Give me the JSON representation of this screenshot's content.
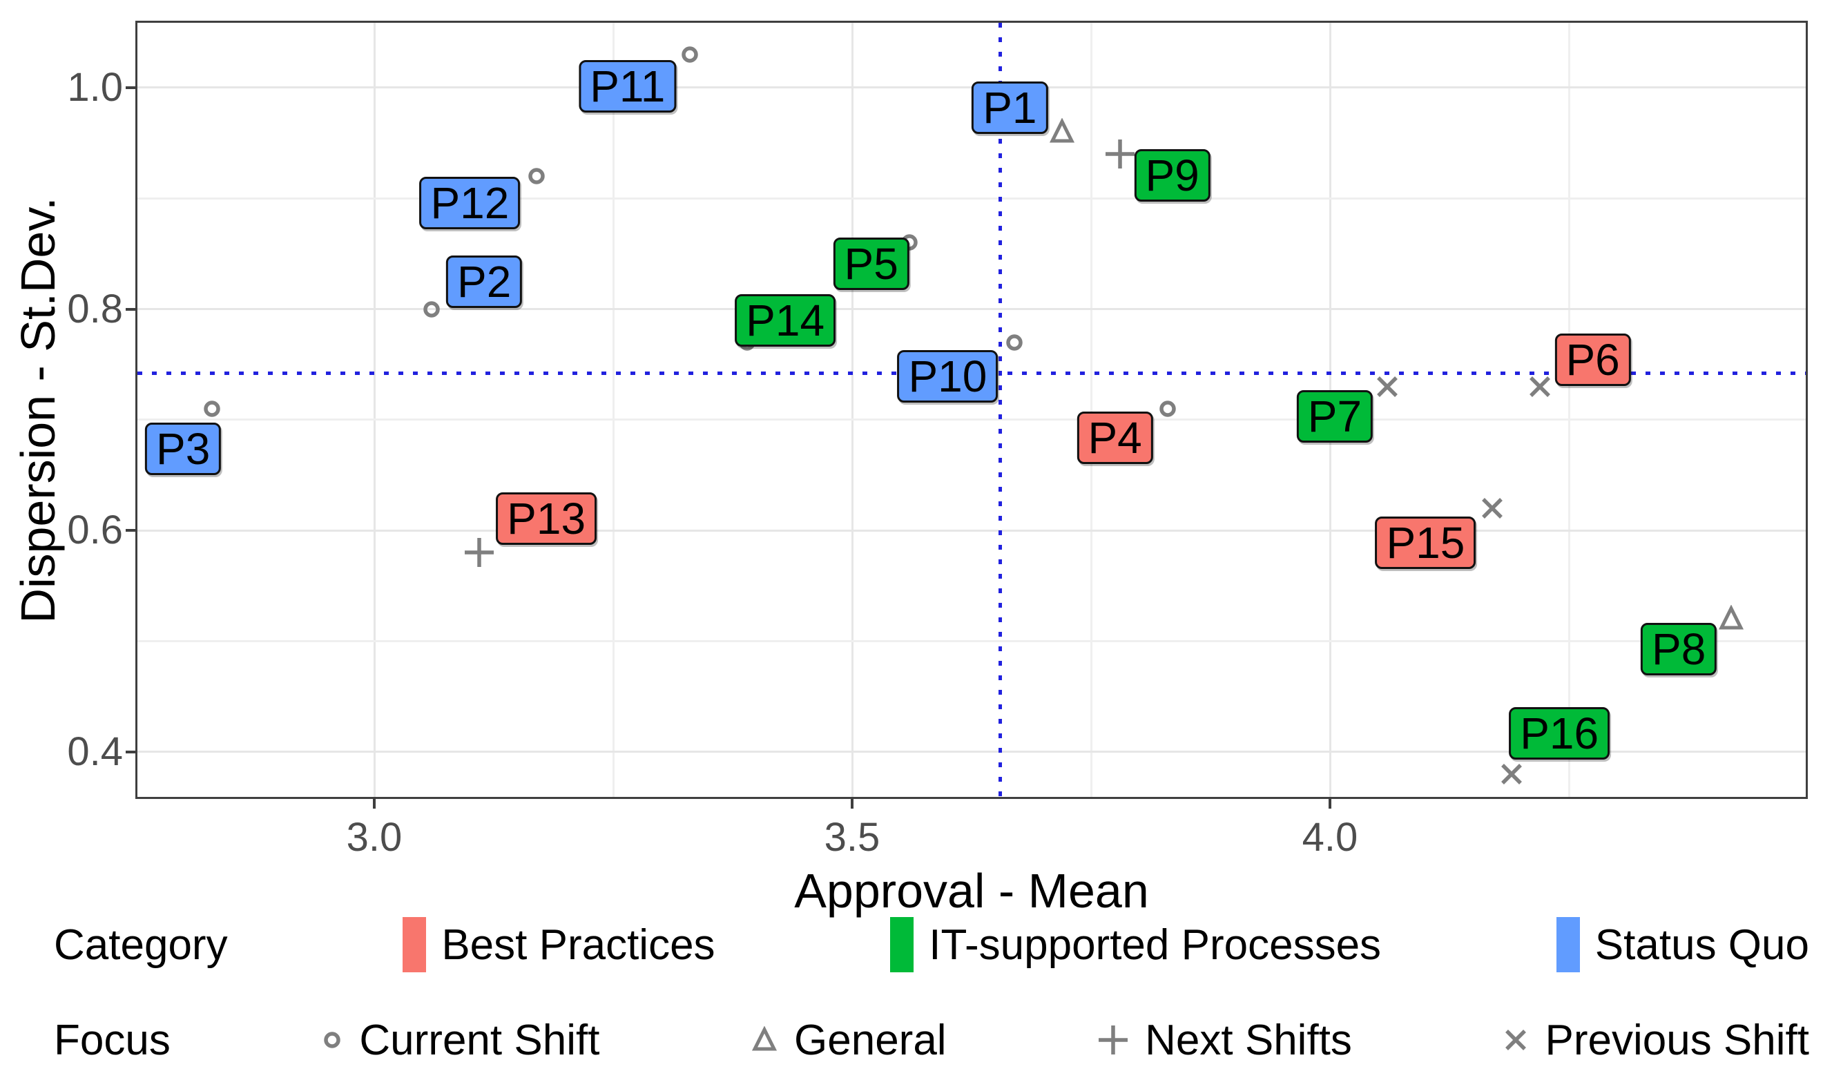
{
  "chart_data": {
    "type": "scatter",
    "title": "",
    "xlabel": "Approval - Mean",
    "ylabel": "Dispersion - St.Dev.",
    "axes": {
      "x": {
        "min": 2.75,
        "max": 4.5,
        "ticks": [
          {
            "v": 3.0,
            "label": "3.0"
          },
          {
            "v": 3.5,
            "label": "3.5"
          },
          {
            "v": 4.0,
            "label": "4.0"
          }
        ],
        "grid_major": [
          3.0,
          3.5,
          4.0
        ],
        "grid_minor": [
          3.25,
          3.75,
          4.25
        ]
      },
      "y": {
        "min": 0.3575,
        "max": 1.0605,
        "ticks": [
          {
            "v": 1.0,
            "label": "1.0"
          },
          {
            "v": 0.8,
            "label": "0.8"
          },
          {
            "v": 0.6,
            "label": "0.6"
          },
          {
            "v": 0.4,
            "label": "0.4"
          }
        ],
        "grid_major": [
          0.4,
          0.6,
          0.8,
          1.0
        ],
        "grid_minor": [
          0.5,
          0.7,
          0.9
        ]
      }
    },
    "grid_on": true,
    "reference_lines": {
      "vertical_x": 3.655,
      "horizontal_y": 0.742,
      "color": "#2121de",
      "style": "dotted"
    },
    "marker_color": "#7f7f7f",
    "category_colors": {
      "Best Practices": "#F8766D",
      "IT-supported Processes": "#00BA38",
      "Status Quo": "#619CFF"
    },
    "focus_shapes": {
      "Current Shift": "circle",
      "General": "triangle",
      "Next Shifts": "plus",
      "Previous Shift": "x"
    },
    "points": [
      {
        "id": "P1",
        "category": "Status Quo",
        "focus": "General",
        "x": 3.72,
        "y": 0.96,
        "label_x": 3.665,
        "label_y": 0.982
      },
      {
        "id": "P2",
        "category": "Status Quo",
        "focus": "Current Shift",
        "x": 3.06,
        "y": 0.8,
        "label_x": 3.115,
        "label_y": 0.825
      },
      {
        "id": "P3",
        "category": "Status Quo",
        "focus": "Current Shift",
        "x": 2.83,
        "y": 0.71,
        "label_x": 2.8,
        "label_y": 0.674
      },
      {
        "id": "P4",
        "category": "Best Practices",
        "focus": "Current Shift",
        "x": 3.83,
        "y": 0.71,
        "label_x": 3.775,
        "label_y": 0.684
      },
      {
        "id": "P5",
        "category": "IT-supported Processes",
        "focus": "Current Shift",
        "x": 3.56,
        "y": 0.86,
        "label_x": 3.52,
        "label_y": 0.841
      },
      {
        "id": "P6",
        "category": "Best Practices",
        "focus": "Previous Shift",
        "x": 4.22,
        "y": 0.73,
        "label_x": 4.275,
        "label_y": 0.754
      },
      {
        "id": "P7",
        "category": "IT-supported Processes",
        "focus": "Previous Shift",
        "x": 4.06,
        "y": 0.73,
        "label_x": 4.005,
        "label_y": 0.703
      },
      {
        "id": "P8",
        "category": "IT-supported Processes",
        "focus": "General",
        "x": 4.42,
        "y": 0.52,
        "label_x": 4.365,
        "label_y": 0.493
      },
      {
        "id": "P9",
        "category": "IT-supported Processes",
        "focus": "Next Shifts",
        "x": 3.78,
        "y": 0.94,
        "label_x": 3.835,
        "label_y": 0.921
      },
      {
        "id": "P10",
        "category": "Status Quo",
        "focus": "Current Shift",
        "x": 3.67,
        "y": 0.77,
        "label_x": 3.6,
        "label_y": 0.739
      },
      {
        "id": "P11",
        "category": "Status Quo",
        "focus": "Current Shift",
        "x": 3.33,
        "y": 1.03,
        "label_x": 3.265,
        "label_y": 1.001
      },
      {
        "id": "P12",
        "category": "Status Quo",
        "focus": "Current Shift",
        "x": 3.17,
        "y": 0.92,
        "label_x": 3.1,
        "label_y": 0.896
      },
      {
        "id": "P13",
        "category": "Best Practices",
        "focus": "Next Shifts",
        "x": 3.11,
        "y": 0.58,
        "label_x": 3.18,
        "label_y": 0.611
      },
      {
        "id": "P14",
        "category": "IT-supported Processes",
        "focus": "Current Shift",
        "x": 3.39,
        "y": 0.77,
        "label_x": 3.43,
        "label_y": 0.79
      },
      {
        "id": "P15",
        "category": "Best Practices",
        "focus": "Previous Shift",
        "x": 4.17,
        "y": 0.62,
        "label_x": 4.1,
        "label_y": 0.589
      },
      {
        "id": "P16",
        "category": "IT-supported Processes",
        "focus": "Previous Shift",
        "x": 4.19,
        "y": 0.38,
        "label_x": 4.24,
        "label_y": 0.417
      }
    ]
  },
  "legend": {
    "category": {
      "title": "Category",
      "items": [
        {
          "label": "Best Practices",
          "color": "#F8766D"
        },
        {
          "label": "IT-supported Processes",
          "color": "#00BA38"
        },
        {
          "label": "Status Quo",
          "color": "#619CFF"
        }
      ]
    },
    "focus": {
      "title": "Focus",
      "items": [
        {
          "label": "Current Shift",
          "shape": "circle"
        },
        {
          "label": "General",
          "shape": "triangle"
        },
        {
          "label": "Next Shifts",
          "shape": "plus"
        },
        {
          "label": "Previous Shift",
          "shape": "x"
        }
      ]
    }
  }
}
